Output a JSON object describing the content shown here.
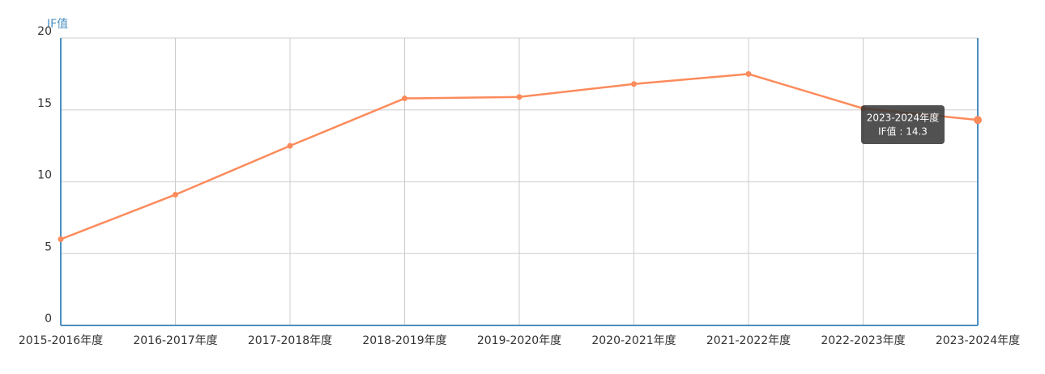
{
  "chart_data": {
    "type": "line",
    "y_label": "IF值",
    "categories": [
      "2015-2016年度",
      "2016-2017年度",
      "2017-2018年度",
      "2018-2019年度",
      "2019-2020年度",
      "2020-2021年度",
      "2021-2022年度",
      "2022-2023年度",
      "2023-2024年度"
    ],
    "values": [
      6.0,
      9.1,
      12.5,
      15.8,
      15.9,
      16.8,
      17.5,
      15.1,
      14.3
    ],
    "color": "#fc8b5c",
    "ylim": [
      0,
      20
    ],
    "yticks": [
      0,
      5,
      10,
      15,
      20
    ],
    "grid": true,
    "tooltip": {
      "title": "2023-2024年度",
      "label": "IF值 : 14.3"
    }
  }
}
